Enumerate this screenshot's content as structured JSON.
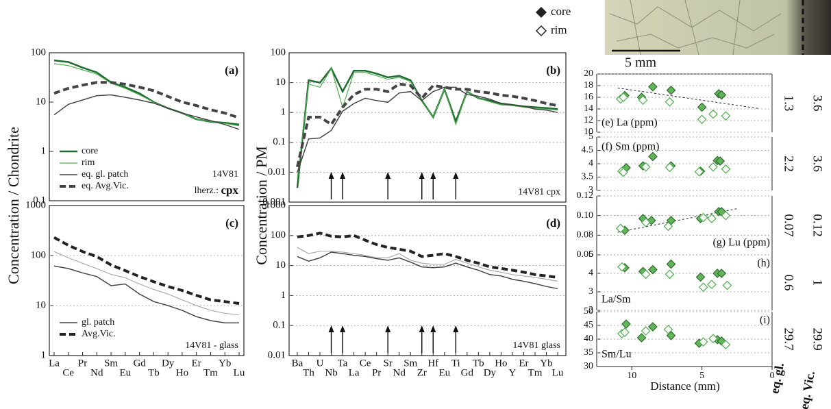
{
  "scale_label": "5 mm",
  "legend": [
    {
      "name": "core",
      "filled": true
    },
    {
      "name": "rim",
      "filled": false
    }
  ],
  "eq_headers": [
    "eq. gl.",
    "eq. Vic."
  ],
  "chart_data": [
    {
      "type": "line",
      "label": "(a)",
      "annotation": "14V81",
      "mineral": {
        "prefix": "lherz.: ",
        "bold": "cpx"
      },
      "y_label": "Concentration / Chondrite",
      "log": true,
      "grid": false,
      "ylim": [
        0.1,
        100
      ],
      "yticks": [
        0.1,
        1,
        10,
        100
      ],
      "series": [
        {
          "name": "core",
          "color": "#1e6b2f",
          "width": 2.5,
          "values": [
            70,
            65,
            50,
            40,
            25,
            20,
            15,
            10,
            7.5,
            6,
            4.5,
            4,
            3.8,
            3.5
          ]
        },
        {
          "name": "rim",
          "color": "#4cae4c",
          "width": 1.2,
          "values": [
            60,
            55,
            45,
            37,
            24,
            19,
            14,
            10,
            7.5,
            6,
            4.5,
            4,
            3.7,
            3.3
          ]
        },
        {
          "name": "eq. gl. patch",
          "color": "#444444",
          "width": 1.5,
          "values": [
            5.5,
            9,
            11,
            13.5,
            14,
            12.5,
            11,
            9.5,
            7.5,
            6,
            5,
            4.2,
            3.5,
            2.8
          ]
        },
        {
          "name": "eq. Avg.Vic.",
          "color": "#444444",
          "width": 4,
          "dashed": true,
          "values": [
            15,
            19,
            22,
            25,
            25,
            23,
            20,
            17,
            13,
            10,
            8.5,
            7,
            6,
            4.8
          ]
        }
      ]
    },
    {
      "type": "line",
      "label": "(c)",
      "annotation": "14V81 - glass",
      "log": true,
      "grid": true,
      "categories": [
        "La",
        "Ce",
        "Pr",
        "Nd",
        "Sm",
        "Eu",
        "Gd",
        "Tb",
        "Dy",
        "Ho",
        "Er",
        "Tm",
        "Yb",
        "Lu"
      ],
      "ylim": [
        1,
        1000
      ],
      "yticks": [
        1,
        10,
        100,
        1000
      ],
      "series": [
        {
          "color": "#aaaaaa",
          "width": 1.2,
          "values": [
            120,
            90,
            70,
            55,
            42,
            36,
            27,
            21,
            17,
            13,
            10,
            8,
            7,
            6.5
          ]
        },
        {
          "name": "gl. patch",
          "color": "#444444",
          "width": 1.5,
          "values": [
            62,
            55,
            45,
            38,
            25,
            27,
            17,
            12,
            10,
            8,
            6,
            5,
            4.5,
            4.5
          ]
        },
        {
          "name": "Avg.Vic.",
          "color": "#222222",
          "width": 4,
          "dashed": true,
          "values": [
            230,
            160,
            120,
            95,
            65,
            50,
            38,
            30,
            24,
            20,
            16,
            13,
            12,
            11
          ]
        }
      ]
    },
    {
      "type": "line",
      "label": "(b)",
      "annotation": "14V81 cpx",
      "y_label": "Concentration / PM",
      "log": true,
      "grid": true,
      "ylim": [
        0.001,
        100
      ],
      "yticks": [
        0.001,
        0.01,
        0.1,
        1,
        10,
        100
      ],
      "series": [
        {
          "color": "#1e6b2f",
          "width": 2.5,
          "values": [
            0.003,
            12,
            10,
            30,
            5,
            25,
            25,
            20,
            15,
            17,
            12,
            2.5,
            0.7,
            6,
            0.5,
            5,
            3,
            2.5,
            2,
            1.8,
            1.6,
            1.5,
            1.4,
            1.3
          ]
        },
        {
          "color": "#4cae4c",
          "width": 1.2,
          "values": [
            0.006,
            9,
            7,
            30,
            1.5,
            22,
            22,
            17,
            13,
            15,
            11,
            2.3,
            0.7,
            6,
            0.4,
            5,
            3,
            2.3,
            1.8,
            1.7,
            1.5,
            1.4,
            1.3,
            1.2
          ]
        },
        {
          "color": "#444444",
          "width": 1.5,
          "values": [
            0.01,
            0.13,
            0.14,
            0.25,
            1.1,
            2,
            3,
            2.5,
            2.2,
            4.5,
            5,
            2.5,
            5,
            7,
            7,
            4,
            3.5,
            2.8,
            2,
            1.8,
            1.6,
            1.3,
            1.2,
            1.0
          ]
        },
        {
          "color": "#444444",
          "width": 4,
          "dashed": true,
          "values": [
            0.015,
            0.7,
            0.7,
            0.4,
            1.5,
            4,
            6,
            6,
            5,
            9,
            8,
            3,
            8,
            7,
            6,
            6,
            5,
            4.5,
            3.8,
            3.5,
            3,
            2.5,
            2,
            1.7
          ]
        }
      ]
    },
    {
      "type": "line",
      "label": "(d)",
      "annotation": "14V81 glass",
      "log": true,
      "grid": true,
      "categories": [
        "Ba",
        "Th",
        "U",
        "Nb",
        "Ta",
        "La",
        "Ce",
        "Pr",
        "Sr",
        "Nd",
        "Sm",
        "Zr",
        "Hf",
        "Eu",
        "Ti",
        "Gd",
        "Tb",
        "Dy",
        "Ho",
        "Y",
        "Er",
        "Tm",
        "Yb",
        "Lu"
      ],
      "ylim": [
        0.01,
        1000
      ],
      "yticks": [
        0.01,
        0.1,
        1,
        10,
        100,
        1000
      ],
      "series": [
        {
          "color": "#aaaaaa",
          "width": 1.2,
          "values": [
            40,
            25,
            30,
            30,
            28,
            25,
            22,
            18,
            18,
            25,
            15,
            12,
            11,
            11,
            16,
            12,
            9,
            7,
            6,
            5,
            4.5,
            4,
            3.5,
            3
          ]
        },
        {
          "color": "#444444",
          "width": 1.5,
          "values": [
            20,
            14,
            18,
            28,
            25,
            22,
            20,
            17,
            15,
            18,
            13,
            9,
            8.5,
            9,
            12,
            9,
            7,
            5,
            4.5,
            3.5,
            3,
            2.5,
            2,
            1.7
          ]
        },
        {
          "color": "#222222",
          "width": 4,
          "dashed": true,
          "values": [
            90,
            100,
            120,
            95,
            90,
            100,
            70,
            50,
            40,
            35,
            30,
            20,
            22,
            25,
            20,
            15,
            12,
            9,
            8,
            7,
            6,
            5,
            4.5,
            4
          ]
        }
      ]
    },
    {
      "type": "scatter",
      "label": "(e) La (ppm)",
      "eq_values": [
        1.3,
        3.6
      ],
      "xlim": [
        12.5,
        0
      ],
      "ylim": [
        10,
        20
      ],
      "yticks": [
        10,
        12,
        14,
        16,
        18,
        20
      ],
      "grid": true,
      "trend": {
        "x": [
          11,
          1
        ],
        "values": [
          17.6,
          14.1
        ]
      },
      "series": [
        {
          "filled": true,
          "x": [
            10.5,
            9.3,
            8.5,
            7.2,
            5,
            3.8,
            3.6
          ],
          "values": [
            16.3,
            16.0,
            17.8,
            17.2,
            14.3,
            16.6,
            16.4
          ]
        },
        {
          "filled": false,
          "x": [
            10.8,
            10.6,
            9.2,
            7.3,
            5,
            4.2,
            3.3
          ],
          "values": [
            15.7,
            16.0,
            15.5,
            15.2,
            12.2,
            13.1,
            12.8
          ]
        }
      ]
    },
    {
      "type": "scatter",
      "label": "(f) Sm (ppm)",
      "eq_values": [
        2.2,
        3.6
      ],
      "xlim": [
        12.5,
        0
      ],
      "ylim": [
        3,
        5
      ],
      "yticks": [
        3,
        3.5,
        4,
        4.5,
        5
      ],
      "grid": true,
      "series": [
        {
          "filled": true,
          "x": [
            10.4,
            9.2,
            8.5,
            7.2,
            5.1,
            3.9,
            3.7
          ],
          "values": [
            3.85,
            3.92,
            4.27,
            3.92,
            3.72,
            4.12,
            4.1
          ]
        },
        {
          "filled": false,
          "x": [
            10.7,
            10.6,
            9.0,
            7.3,
            5.2,
            4.2,
            3.3
          ],
          "values": [
            3.72,
            3.68,
            3.88,
            3.86,
            3.7,
            3.88,
            3.8
          ]
        }
      ]
    },
    {
      "type": "scatter",
      "label": "(g) Lu (ppm)",
      "eq_values": [
        0.07,
        0.12
      ],
      "xlim": [
        12.5,
        0
      ],
      "ylim": [
        0.06,
        0.12
      ],
      "yticks": [
        0.06,
        0.08,
        {
          "value": 0.1,
          "label": "0.10"
        },
        0.12
      ],
      "grid": true,
      "trend": {
        "x": [
          11,
          2.5
        ],
        "values": [
          0.083,
          0.107
        ]
      },
      "series": [
        {
          "filled": true,
          "x": [
            10.5,
            9.2,
            8.6,
            7.2,
            5.1,
            3.8,
            3.6
          ],
          "values": [
            0.085,
            0.097,
            0.095,
            0.095,
            0.097,
            0.104,
            0.104
          ]
        },
        {
          "filled": false,
          "x": [
            10.8,
            9.0,
            7.4,
            4.9,
            4.3,
            3.3
          ],
          "values": [
            0.087,
            0.093,
            0.089,
            0.098,
            0.097,
            0.1
          ]
        }
      ]
    },
    {
      "type": "scatter",
      "label": "(h)",
      "sublabel": "La/Sm",
      "eq_values": [
        0.6,
        1
      ],
      "xlim": [
        12.5,
        0
      ],
      "ylim": [
        2,
        5
      ],
      "yticks": [
        2,
        3,
        4,
        5
      ],
      "grid": true,
      "series": [
        {
          "filled": true,
          "x": [
            10.5,
            9.2,
            8.5,
            7.2,
            5.1,
            3.9,
            3.6
          ],
          "values": [
            4.3,
            4.1,
            4.2,
            4.5,
            3.8,
            4.0,
            4.0
          ]
        },
        {
          "filled": false,
          "x": [
            10.7,
            9.0,
            7.3,
            4.9,
            4.3,
            3.2
          ],
          "values": [
            4.35,
            3.95,
            3.95,
            3.25,
            3.4,
            3.35
          ]
        }
      ]
    },
    {
      "type": "scatter",
      "label": "(i)",
      "sublabel": "Sm/Lu",
      "eq_values": [
        29.7,
        29.9
      ],
      "xlim": [
        12.5,
        0
      ],
      "ylim": [
        30,
        50
      ],
      "yticks": [
        30,
        35,
        40,
        45,
        50
      ],
      "xticks": [
        10,
        5,
        0
      ],
      "x_label": "Distance (mm)",
      "grid": true,
      "series": [
        {
          "filled": true,
          "x": [
            10.4,
            9.3,
            8.5,
            7.2,
            5.2,
            3.9,
            3.6
          ],
          "values": [
            45.5,
            40.5,
            44.5,
            41.3,
            38.5,
            39.8,
            39.3
          ]
        },
        {
          "filled": false,
          "x": [
            10.7,
            10.5,
            9.0,
            7.4,
            4.9,
            4.2,
            3.3
          ],
          "values": [
            42,
            42.5,
            43,
            43.5,
            39,
            40.2,
            38
          ]
        }
      ]
    }
  ]
}
